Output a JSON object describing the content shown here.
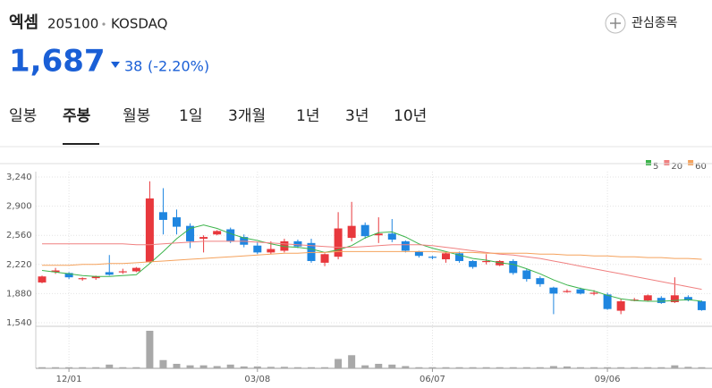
{
  "header": {
    "name": "엑셈",
    "code": "205100",
    "market": "KOSDAQ",
    "watch": "관심종목",
    "price": "1,687",
    "change": "38",
    "change_pct": "(-2.20%)"
  },
  "tabs": [
    "일봉",
    "주봉",
    "월봉",
    "1일",
    "3개월",
    "1년",
    "3년",
    "10년"
  ],
  "chart_data": {
    "type": "candlestick",
    "categories": [
      null,
      null,
      "12/01",
      null,
      null,
      null,
      null,
      null,
      null,
      null,
      null,
      null,
      null,
      null,
      null,
      null,
      "03/08",
      null,
      null,
      null,
      null,
      null,
      null,
      null,
      null,
      null,
      null,
      null,
      null,
      "06/07",
      null,
      null,
      null,
      null,
      null,
      null,
      null,
      null,
      null,
      null,
      null,
      null,
      "09/06",
      null,
      null,
      null,
      null,
      null,
      null,
      null
    ],
    "open": [
      2010,
      2130,
      2120,
      2050,
      2060,
      2130,
      2130,
      2140,
      2250,
      2830,
      2770,
      2670,
      2520,
      2570,
      2630,
      2540,
      2440,
      2360,
      2380,
      2490,
      2470,
      2240,
      2310,
      2530,
      2680,
      2560,
      2580,
      2490,
      2370,
      2310,
      2280,
      2350,
      2260,
      2250,
      2210,
      2260,
      2150,
      2060,
      1950,
      1900,
      1930,
      1880,
      1870,
      1680,
      1800,
      1800,
      1830,
      1780,
      1840,
      1790
    ],
    "high": [
      2090,
      2180,
      2130,
      2070,
      2090,
      2330,
      2170,
      2190,
      3190,
      3110,
      2860,
      2700,
      2560,
      2620,
      2650,
      2570,
      2480,
      2490,
      2520,
      2510,
      2520,
      2350,
      2830,
      2950,
      2710,
      2770,
      2750,
      2500,
      2380,
      2320,
      2360,
      2370,
      2270,
      2340,
      2270,
      2280,
      2170,
      2080,
      1960,
      1930,
      1950,
      1920,
      1890,
      1820,
      1830,
      1870,
      1850,
      2070,
      1860,
      1800
    ],
    "low": [
      2000,
      2110,
      2050,
      2030,
      2040,
      2090,
      2110,
      2130,
      2240,
      2570,
      2570,
      2410,
      2360,
      2560,
      2470,
      2420,
      2340,
      2340,
      2360,
      2410,
      2240,
      2200,
      2280,
      2490,
      2520,
      2470,
      2480,
      2360,
      2300,
      2280,
      2240,
      2240,
      2170,
      2220,
      2200,
      2100,
      2020,
      1960,
      1640,
      1890,
      1870,
      1860,
      1690,
      1640,
      1790,
      1790,
      1760,
      1770,
      1790,
      1680
    ],
    "close": [
      2080,
      2150,
      2070,
      2060,
      2080,
      2100,
      2140,
      2180,
      2990,
      2740,
      2660,
      2490,
      2540,
      2610,
      2490,
      2450,
      2360,
      2400,
      2490,
      2430,
      2260,
      2340,
      2640,
      2670,
      2550,
      2580,
      2510,
      2380,
      2320,
      2300,
      2350,
      2260,
      2190,
      2260,
      2260,
      2120,
      2050,
      1990,
      1880,
      1910,
      1880,
      1890,
      1700,
      1790,
      1810,
      1860,
      1770,
      1860,
      1800,
      1687
    ],
    "volume": [
      3,
      3,
      3,
      3,
      3,
      10,
      3,
      3,
      100,
      22,
      12,
      8,
      8,
      6,
      10,
      5,
      5,
      4,
      4,
      3,
      3,
      3,
      25,
      35,
      8,
      12,
      10,
      6,
      3,
      3,
      3,
      3,
      3,
      3,
      3,
      3,
      3,
      3,
      6,
      5,
      3,
      3,
      3,
      3,
      3,
      3,
      3,
      8,
      4,
      3
    ],
    "volume_lim": [
      0,
      100
    ],
    "up_color": "#e8383d",
    "down_color": "#1f86e0",
    "volume_color": "#a8a8a8",
    "series": [
      {
        "name": "5",
        "color": "#3cb44b",
        "values": [
          2150,
          2130,
          2110,
          2090,
          2080,
          2080,
          2090,
          2100,
          2230,
          2370,
          2520,
          2640,
          2680,
          2640,
          2580,
          2530,
          2500,
          2460,
          2430,
          2420,
          2400,
          2360,
          2390,
          2440,
          2530,
          2590,
          2600,
          2540,
          2460,
          2410,
          2370,
          2330,
          2290,
          2270,
          2240,
          2220,
          2170,
          2110,
          2040,
          1980,
          1940,
          1910,
          1860,
          1820,
          1800,
          1790,
          1790,
          1800,
          1810,
          1790
        ]
      },
      {
        "name": "20",
        "color": "#f08080",
        "values": [
          2460,
          2460,
          2460,
          2460,
          2460,
          2460,
          2460,
          2450,
          2450,
          2460,
          2470,
          2480,
          2490,
          2490,
          2490,
          2490,
          2480,
          2470,
          2460,
          2450,
          2440,
          2430,
          2420,
          2420,
          2430,
          2440,
          2450,
          2450,
          2450,
          2440,
          2420,
          2400,
          2380,
          2360,
          2340,
          2330,
          2310,
          2290,
          2260,
          2230,
          2200,
          2170,
          2140,
          2110,
          2080,
          2050,
          2020,
          1990,
          1960,
          1930
        ]
      },
      {
        "name": "60",
        "color": "#f5a25d",
        "values": [
          2210,
          2210,
          2210,
          2220,
          2220,
          2230,
          2230,
          2240,
          2250,
          2260,
          2270,
          2280,
          2290,
          2300,
          2310,
          2320,
          2330,
          2340,
          2350,
          2350,
          2360,
          2360,
          2370,
          2370,
          2370,
          2370,
          2370,
          2370,
          2370,
          2370,
          2360,
          2360,
          2360,
          2350,
          2350,
          2350,
          2350,
          2340,
          2340,
          2330,
          2330,
          2320,
          2320,
          2310,
          2310,
          2300,
          2300,
          2290,
          2290,
          2280
        ]
      }
    ],
    "ylim": [
      1540,
      3240
    ],
    "yticks": [
      {
        "value": 1540,
        "label": "1,540"
      },
      {
        "value": 1880,
        "label": "1,880"
      },
      {
        "value": 2220,
        "label": "2,220"
      },
      {
        "value": 2560,
        "label": "2,560"
      },
      {
        "value": 2900,
        "label": "2,900"
      },
      {
        "value": 3240,
        "label": "3,240"
      }
    ],
    "grid": true
  }
}
